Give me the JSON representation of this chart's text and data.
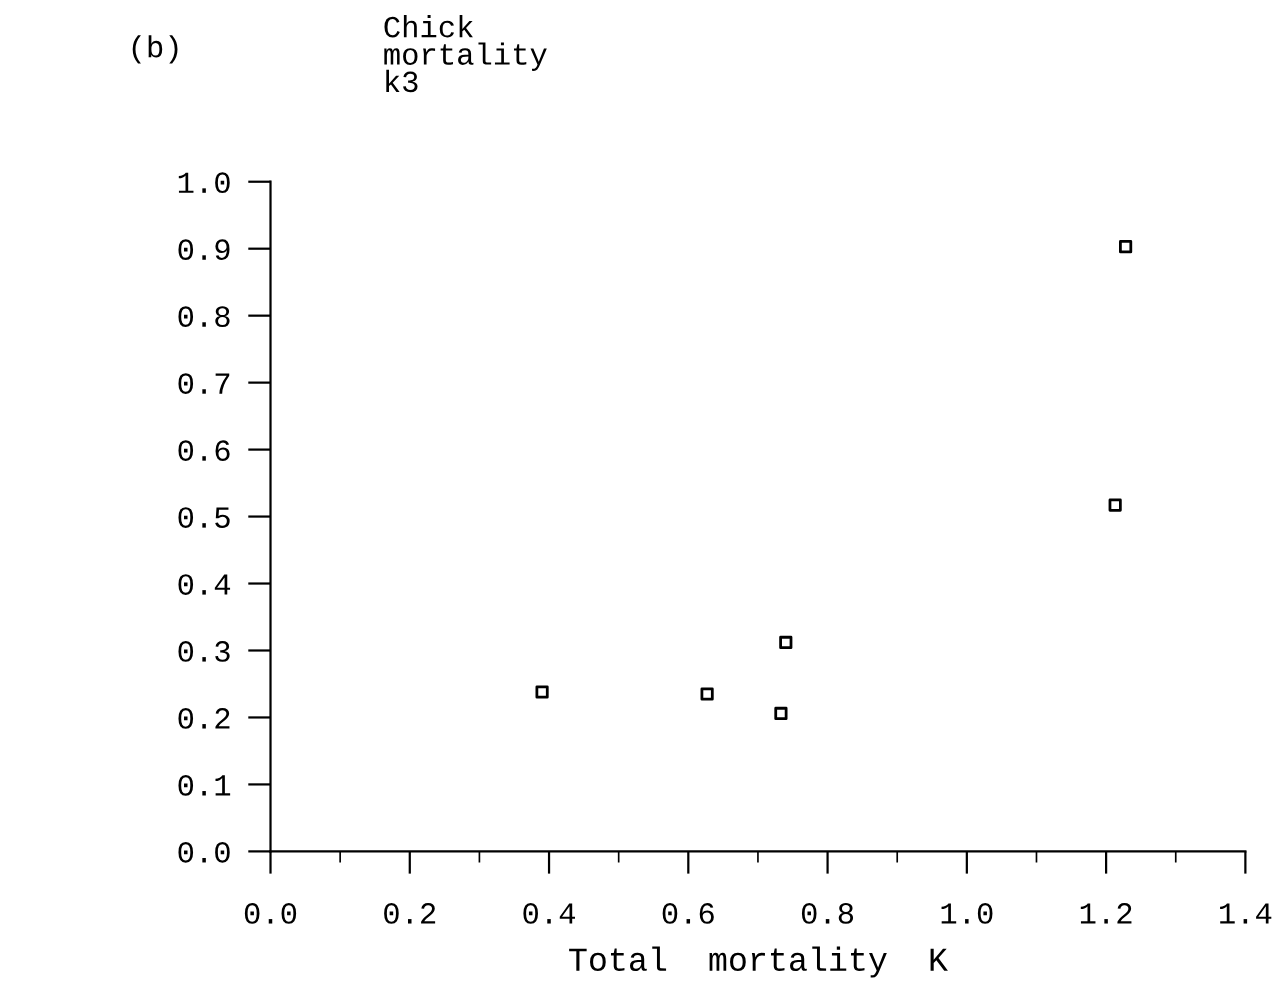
{
  "chart_data": {
    "type": "scatter",
    "ylabel": "Chick\nmortality\nk3",
    "xlabel": "Total  mortality  K",
    "annotations": [
      "(b)"
    ],
    "x": [
      0.39,
      0.627,
      0.733,
      0.74,
      1.213,
      1.228
    ],
    "values": [
      0.238,
      0.235,
      0.206,
      0.312,
      0.517,
      0.903
    ],
    "color": "#000000",
    "marker": "square",
    "xlim": [
      0,
      1.4
    ],
    "xticks": [
      {
        "value": 0,
        "label": "0.0"
      },
      0.2,
      0.4,
      0.6,
      0.8,
      {
        "value": 1,
        "label": "1.0"
      },
      1.2,
      1.4
    ],
    "ylim": [
      0,
      1
    ],
    "yticks": [
      {
        "value": 0,
        "label": "0.0"
      },
      0.1,
      0.2,
      0.3,
      0.4,
      0.5,
      0.6,
      0.7,
      0.8,
      0.9,
      {
        "value": 1,
        "label": "1.0"
      }
    ],
    "grid": false,
    "legend": false
  }
}
